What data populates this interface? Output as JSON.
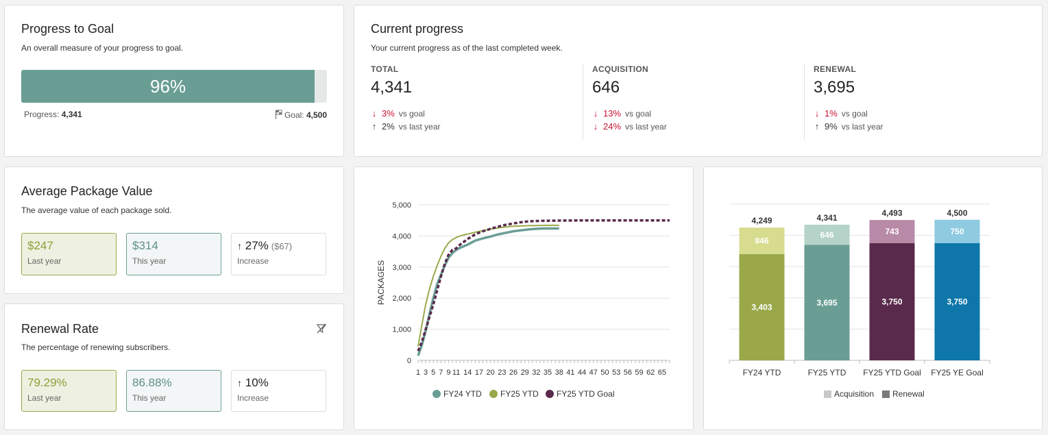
{
  "progress_to_goal": {
    "title": "Progress to Goal",
    "subtitle": "An overall measure of your progress to goal.",
    "percent_label": "96%",
    "percent_value": 96,
    "progress_label": "Progress:",
    "progress_value": "4,341",
    "goal_label": "Goal:",
    "goal_value": "4,500"
  },
  "current_progress": {
    "title": "Current progress",
    "subtitle": "Your current progress as of the last completed week.",
    "vs_goal": "vs goal",
    "vs_last_year": "vs last year",
    "metrics": [
      {
        "label": "TOTAL",
        "value": "4,341",
        "goal_delta": "3%",
        "goal_dir": "down",
        "year_delta": "2%",
        "year_dir": "up"
      },
      {
        "label": "ACQUISITION",
        "value": "646",
        "goal_delta": "13%",
        "goal_dir": "down",
        "year_delta": "24%",
        "year_dir": "down"
      },
      {
        "label": "RENEWAL",
        "value": "3,695",
        "goal_delta": "1%",
        "goal_dir": "down",
        "year_delta": "9%",
        "year_dir": "up"
      }
    ]
  },
  "avg_package": {
    "title": "Average Package Value",
    "subtitle": "The average value of each package sold.",
    "last_year_value": "$247",
    "last_year_label": "Last year",
    "this_year_value": "$314",
    "this_year_label": "This year",
    "increase_value": "27%",
    "increase_extra": "($67)",
    "increase_label": "Increase"
  },
  "renewal_rate": {
    "title": "Renewal Rate",
    "subtitle": "The percentage of renewing subscribers.",
    "last_year_value": "79.29%",
    "last_year_label": "Last year",
    "this_year_value": "86.88%",
    "this_year_label": "This year",
    "increase_value": "10%",
    "increase_label": "Increase"
  },
  "colors": {
    "teal": "#6a9e94",
    "olive": "#9aa84a",
    "plum": "#5a2a4c",
    "blue": "#0e76a8"
  },
  "chart_data": [
    {
      "type": "line",
      "ylabel": "PACKAGES",
      "ylim": [
        0,
        5000
      ],
      "y_ticks": [
        "0",
        "1,000",
        "2,000",
        "3,000",
        "4,000",
        "5,000"
      ],
      "x_ticks": [
        "1",
        "3",
        "5",
        "7",
        "9",
        "11",
        "14",
        "17",
        "20",
        "23",
        "26",
        "29",
        "32",
        "35",
        "38",
        "41",
        "44",
        "47",
        "50",
        "53",
        "56",
        "59",
        "62",
        "65"
      ],
      "series": [
        {
          "name": "FY24 YTD",
          "color": "#6a9e94",
          "x": [
            1,
            2,
            3,
            4,
            5,
            6,
            7,
            8,
            9,
            10,
            11,
            12,
            14,
            16,
            18,
            20,
            22,
            24,
            26,
            28,
            30,
            32,
            34,
            36,
            38
          ],
          "y": [
            150,
            500,
            950,
            1500,
            2000,
            2450,
            2750,
            3050,
            3300,
            3450,
            3550,
            3620,
            3720,
            3850,
            3920,
            3980,
            4050,
            4100,
            4150,
            4180,
            4210,
            4230,
            4240,
            4240,
            4240
          ]
        },
        {
          "name": "FY25 YTD",
          "color": "#9aa84a",
          "x": [
            1,
            2,
            3,
            4,
            5,
            6,
            7,
            8,
            9,
            10,
            11,
            12,
            14,
            16,
            18,
            20,
            22,
            24,
            26,
            28,
            30,
            32,
            34,
            36,
            38
          ],
          "y": [
            450,
            1150,
            1800,
            2300,
            2700,
            3050,
            3350,
            3600,
            3780,
            3880,
            3950,
            4000,
            4060,
            4120,
            4170,
            4220,
            4260,
            4290,
            4310,
            4320,
            4330,
            4335,
            4340,
            4341,
            4341
          ]
        },
        {
          "name": "FY25 YTD Goal",
          "color": "#5a2a4c",
          "dashed": true,
          "x": [
            1,
            2,
            3,
            4,
            5,
            6,
            7,
            8,
            9,
            10,
            11,
            12,
            14,
            16,
            18,
            20,
            22,
            24,
            26,
            28,
            30,
            32,
            35,
            40,
            45,
            50,
            55,
            60,
            65,
            67
          ],
          "y": [
            300,
            600,
            1000,
            1400,
            1800,
            2250,
            2700,
            3100,
            3400,
            3550,
            3600,
            3720,
            3900,
            4050,
            4150,
            4230,
            4300,
            4360,
            4400,
            4440,
            4470,
            4480,
            4490,
            4495,
            4500,
            4500,
            4500,
            4500,
            4500,
            4500
          ]
        }
      ]
    },
    {
      "type": "bar",
      "stacked": true,
      "categories": [
        "FY24 YTD",
        "FY25 YTD",
        "FY25 YTD Goal",
        "FY25 YE Goal"
      ],
      "ylim": [
        0,
        5000
      ],
      "series": [
        {
          "name": "Renewal",
          "values": [
            3403,
            3695,
            3750,
            3750
          ],
          "labels": [
            "3,403",
            "3,695",
            "3,750",
            "3,750"
          ]
        },
        {
          "name": "Acquisition",
          "values": [
            846,
            646,
            743,
            750
          ],
          "labels": [
            "846",
            "646",
            "743",
            "750"
          ]
        }
      ],
      "totals": [
        "4,249",
        "4,341",
        "4,493",
        "4,500"
      ],
      "renewal_colors": [
        "#9aa84a",
        "#6a9e94",
        "#5a2a4c",
        "#0e76a8"
      ],
      "acquisition_colors": [
        "#d7dc8e",
        "#b5d3c8",
        "#b98aa8",
        "#8ecae0"
      ],
      "legend": [
        "Acquisition",
        "Renewal"
      ]
    }
  ]
}
